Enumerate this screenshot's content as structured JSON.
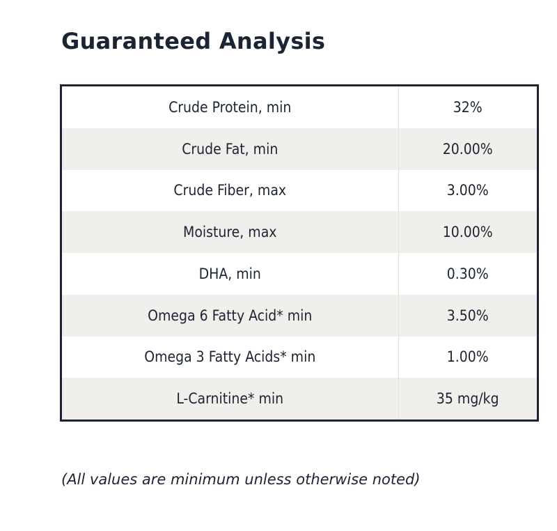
{
  "title": "Guaranteed Analysis",
  "analysis": {
    "rows": [
      {
        "name": "Crude Protein, min",
        "value": "32%"
      },
      {
        "name": "Crude Fat, min",
        "value": "20.00%"
      },
      {
        "name": "Crude Fiber, max",
        "value": "3.00%"
      },
      {
        "name": "Moisture, max",
        "value": "10.00%"
      },
      {
        "name": "DHA, min",
        "value": "0.30%"
      },
      {
        "name": "Omega 6 Fatty Acid* min",
        "value": "3.50%"
      },
      {
        "name": "Omega 3 Fatty Acids* min",
        "value": "1.00%"
      },
      {
        "name": "L-Carnitine* min",
        "value": "35 mg/kg"
      }
    ]
  },
  "note": "(All values are minimum unless otherwise noted)",
  "colors": {
    "text": "#1b2433",
    "border": "#1b2433",
    "stripe": "#f1efec"
  }
}
